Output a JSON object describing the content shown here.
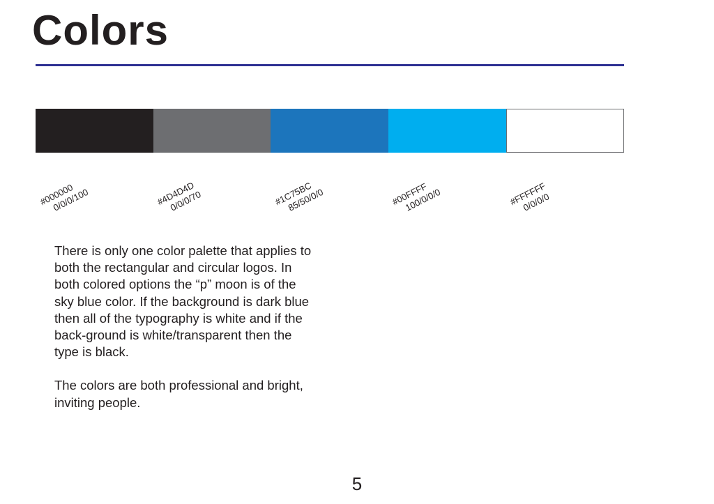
{
  "page": {
    "title": "Colors",
    "rule_color": "#2e3192",
    "page_number": "5"
  },
  "swatches": [
    {
      "hex": "#000000",
      "cmyk": "0/0/0/100",
      "fill": "#231f20"
    },
    {
      "hex": "#4D4D4D",
      "cmyk": "0/0/0/70",
      "fill": "#6d6e71"
    },
    {
      "hex": "#1C75BC",
      "cmyk": "85/50/0/0",
      "fill": "#1c75bc"
    },
    {
      "hex": "#00FFFF",
      "cmyk": "100/0/0/0",
      "fill": "#00aeef"
    },
    {
      "hex": "#FFFFFF",
      "cmyk": "0/0/0/0",
      "fill": "#ffffff"
    }
  ],
  "body": {
    "paragraph_1": "There is only one color palette that applies to both the rectangular and circular logos. In both colored options the “p” moon is of the sky blue color. If the background is dark blue then all of the typography is white and if the back-ground is white/transparent then the type is black.",
    "paragraph_2": "The colors are both professional and bright, inviting people."
  }
}
